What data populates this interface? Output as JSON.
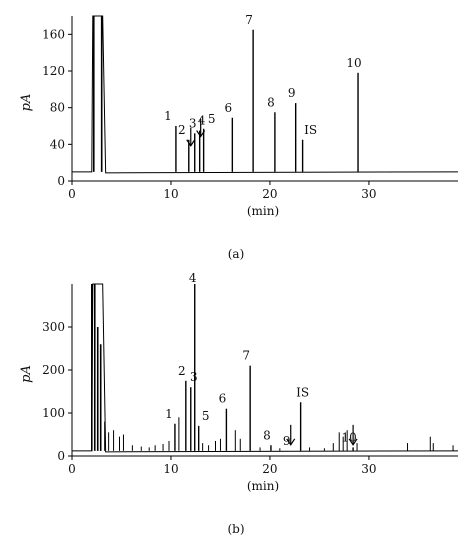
{
  "chart_data": [
    {
      "type": "line",
      "panel_label": "(a)",
      "xlabel": "(min)",
      "ylabel": "pA",
      "xlim": [
        0,
        39
      ],
      "ylim": [
        0,
        180
      ],
      "xticks": [
        0,
        10,
        20,
        30
      ],
      "yticks": [
        0,
        40,
        80,
        120,
        160
      ],
      "grid": false,
      "baseline": 10,
      "solvent_peaks": [
        {
          "x": 2.2,
          "y": 180
        },
        {
          "x": 3.0,
          "y": 180
        }
      ],
      "peaks": [
        {
          "label": "1",
          "x": 10.5,
          "y": 60
        },
        {
          "label": "2",
          "x": 11.8,
          "y": 45
        },
        {
          "label": "3",
          "x": 12.4,
          "y": 52
        },
        {
          "label": "4",
          "x": 12.9,
          "y": 55
        },
        {
          "label": "5",
          "x": 13.3,
          "y": 57
        },
        {
          "label": "6",
          "x": 16.2,
          "y": 69
        },
        {
          "label": "7",
          "x": 18.3,
          "y": 165
        },
        {
          "label": "8",
          "x": 20.5,
          "y": 75
        },
        {
          "label": "9",
          "x": 22.6,
          "y": 85
        },
        {
          "label": "IS",
          "x": 23.3,
          "y": 45
        },
        {
          "label": "10",
          "x": 28.9,
          "y": 118
        }
      ],
      "arrows": [
        {
          "x": 12.0
        },
        {
          "x": 13.0
        }
      ]
    },
    {
      "type": "line",
      "panel_label": "(b)",
      "xlabel": "(min)",
      "ylabel": "pA",
      "xlim": [
        0,
        39
      ],
      "ylim": [
        0,
        400
      ],
      "xticks": [
        0,
        10,
        20,
        30
      ],
      "yticks": [
        0,
        100,
        200,
        300
      ],
      "grid": false,
      "baseline": 12,
      "solvent_peaks": [
        {
          "x": 2.0,
          "y": 400
        },
        {
          "x": 2.3,
          "y": 400
        },
        {
          "x": 2.6,
          "y": 300
        },
        {
          "x": 2.9,
          "y": 260
        }
      ],
      "peaks": [
        {
          "label": "1",
          "x": 10.4,
          "y": 75
        },
        {
          "label": "2",
          "x": 11.5,
          "y": 175
        },
        {
          "label": "3",
          "x": 12.0,
          "y": 160
        },
        {
          "label": "4",
          "x": 12.4,
          "y": 400
        },
        {
          "label": "5",
          "x": 12.8,
          "y": 70
        },
        {
          "label": "6",
          "x": 15.6,
          "y": 110
        },
        {
          "label": "7",
          "x": 18.0,
          "y": 210
        },
        {
          "label": "8",
          "x": 20.1,
          "y": 25
        },
        {
          "label": "9",
          "x": 22.1,
          "y": 12
        },
        {
          "label": "IS",
          "x": 23.1,
          "y": 125
        },
        {
          "label": "10",
          "x": 28.4,
          "y": 20
        }
      ],
      "minor_peaks": [
        {
          "x": 3.3,
          "y": 80
        },
        {
          "x": 3.7,
          "y": 55
        },
        {
          "x": 4.2,
          "y": 60
        },
        {
          "x": 4.8,
          "y": 45
        },
        {
          "x": 5.2,
          "y": 50
        },
        {
          "x": 6.1,
          "y": 25
        },
        {
          "x": 7.0,
          "y": 22
        },
        {
          "x": 7.8,
          "y": 20
        },
        {
          "x": 8.4,
          "y": 25
        },
        {
          "x": 9.2,
          "y": 28
        },
        {
          "x": 9.8,
          "y": 35
        },
        {
          "x": 10.8,
          "y": 90
        },
        {
          "x": 13.2,
          "y": 30
        },
        {
          "x": 13.8,
          "y": 25
        },
        {
          "x": 14.5,
          "y": 35
        },
        {
          "x": 15.0,
          "y": 40
        },
        {
          "x": 16.5,
          "y": 60
        },
        {
          "x": 17.0,
          "y": 40
        },
        {
          "x": 19.0,
          "y": 20
        },
        {
          "x": 21.0,
          "y": 18
        },
        {
          "x": 24.0,
          "y": 20
        },
        {
          "x": 25.5,
          "y": 18
        },
        {
          "x": 26.4,
          "y": 30
        },
        {
          "x": 27.0,
          "y": 55
        },
        {
          "x": 27.4,
          "y": 45
        },
        {
          "x": 27.8,
          "y": 60
        },
        {
          "x": 28.8,
          "y": 30
        },
        {
          "x": 33.9,
          "y": 30
        },
        {
          "x": 36.2,
          "y": 45
        },
        {
          "x": 36.5,
          "y": 30
        },
        {
          "x": 38.5,
          "y": 25
        }
      ],
      "arrows": [
        {
          "x": 22.1
        },
        {
          "x": 28.4
        }
      ]
    }
  ]
}
